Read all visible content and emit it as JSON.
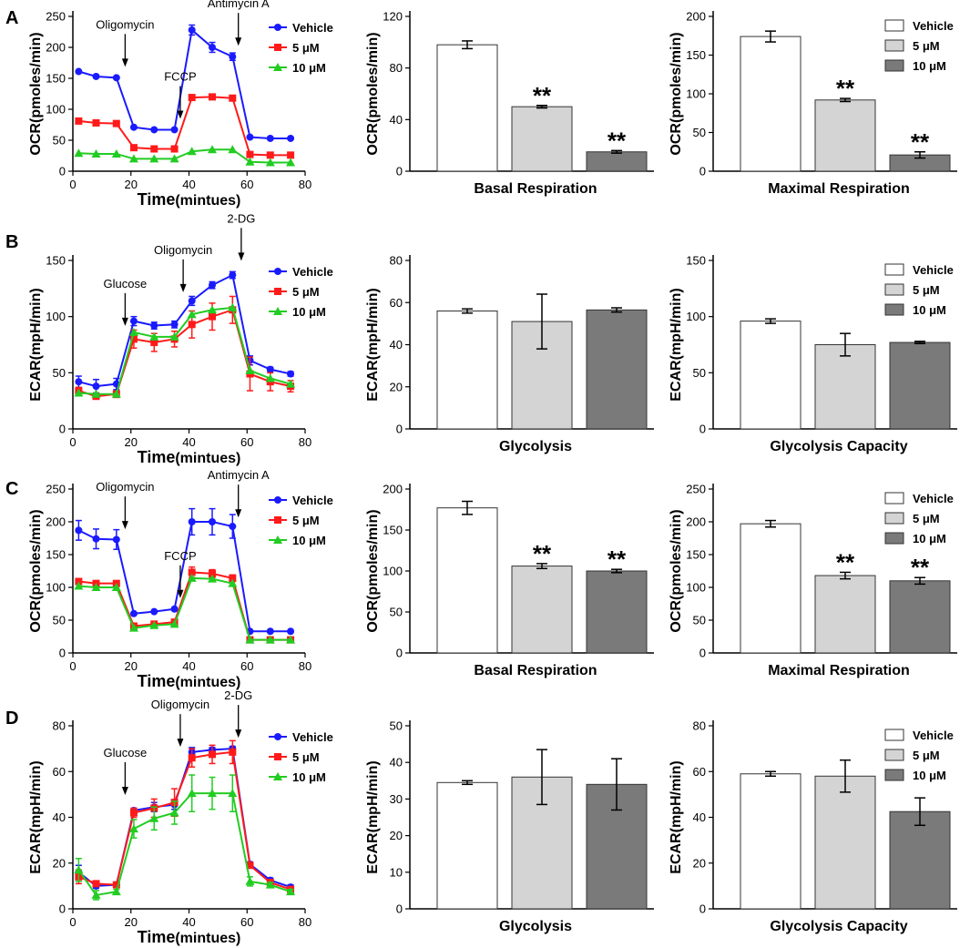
{
  "panel_labels": [
    "A",
    "B",
    "C",
    "D"
  ],
  "chart_data": [
    {
      "id": "A1",
      "type": "line",
      "row": 0,
      "col": 0,
      "title": "",
      "xlabel_bold": "Time",
      "xlabel_rest": "(mintues)",
      "ylabel": "OCR(pmoles/min)",
      "xlim": [
        0,
        80
      ],
      "xticks": [
        0,
        20,
        40,
        60,
        80
      ],
      "ylim": [
        0,
        250
      ],
      "yticks": [
        0,
        50,
        100,
        150,
        200,
        250
      ],
      "x": [
        2,
        8,
        15,
        21,
        28,
        35,
        41,
        48,
        55,
        61,
        68,
        75
      ],
      "series": [
        {
          "name": "Vehicle",
          "color": "#1a1aff",
          "marker": "circle",
          "values": [
            161,
            153,
            151,
            71,
            67,
            67,
            228,
            200,
            185,
            55,
            53,
            53
          ],
          "errors": [
            0,
            0,
            0,
            0,
            0,
            0,
            8,
            8,
            6,
            0,
            0,
            0
          ]
        },
        {
          "name": "5 μM",
          "color": "#ff1a1a",
          "marker": "square",
          "values": [
            81,
            78,
            77,
            38,
            36,
            36,
            119,
            120,
            118,
            27,
            26,
            26
          ],
          "errors": [
            0,
            0,
            0,
            0,
            0,
            0,
            0,
            0,
            0,
            0,
            0,
            0
          ]
        },
        {
          "name": "10 μM",
          "color": "#22cc22",
          "marker": "triangle",
          "values": [
            29,
            28,
            28,
            20,
            20,
            20,
            32,
            35,
            35,
            15,
            14,
            14
          ],
          "errors": [
            0,
            0,
            0,
            0,
            0,
            0,
            0,
            0,
            0,
            0,
            0,
            0
          ]
        }
      ],
      "annotations": [
        {
          "text": "Oligomycin",
          "x": 18,
          "y_value": 151
        },
        {
          "text": "FCCP",
          "x": 37,
          "y_value": 67
        },
        {
          "text": "Antimycin A",
          "x": 57,
          "y_value": 185
        }
      ],
      "legend": "top-right"
    },
    {
      "id": "A2",
      "type": "bar",
      "row": 0,
      "col": 1,
      "xlabel": "Basal Respiration",
      "ylabel": "OCR(pmoles/min)",
      "ylim": [
        0,
        120
      ],
      "yticks": [
        0,
        40,
        80,
        120
      ],
      "categories": [
        "Vehicle",
        "5 μM",
        "10 μM"
      ],
      "values": [
        98,
        50,
        15
      ],
      "errors": [
        3,
        1,
        1
      ],
      "significance": [
        "",
        "**",
        "**"
      ]
    },
    {
      "id": "A3",
      "type": "bar",
      "row": 0,
      "col": 2,
      "xlabel": "Maximal Respiration",
      "ylabel": "OCR(pmoles/min)",
      "ylim": [
        0,
        200
      ],
      "yticks": [
        0,
        50,
        100,
        150,
        200
      ],
      "categories": [
        "Vehicle",
        "5 μM",
        "10 μM"
      ],
      "values": [
        174,
        92,
        21
      ],
      "errors": [
        7,
        2,
        4
      ],
      "significance": [
        "",
        "**",
        "**"
      ],
      "legend": "top-right"
    },
    {
      "id": "B1",
      "type": "line",
      "row": 1,
      "col": 0,
      "xlabel_bold": "Time",
      "xlabel_rest": "(mintues)",
      "ylabel": "ECAR(mpH/min)",
      "xlim": [
        0,
        80
      ],
      "xticks": [
        0,
        20,
        40,
        60,
        80
      ],
      "ylim": [
        0,
        150
      ],
      "yticks": [
        0,
        50,
        100,
        150
      ],
      "x": [
        2,
        8,
        15,
        21,
        28,
        35,
        41,
        48,
        55,
        61,
        68,
        75
      ],
      "series": [
        {
          "name": "Vehicle",
          "color": "#1a1aff",
          "marker": "circle",
          "values": [
            42,
            38,
            40,
            96,
            92,
            93,
            114,
            128,
            137,
            61,
            53,
            49
          ],
          "errors": [
            5,
            6,
            5,
            4,
            3,
            3,
            4,
            3,
            3,
            4,
            2,
            2
          ]
        },
        {
          "name": "5 μM",
          "color": "#ff1a1a",
          "marker": "square",
          "values": [
            34,
            29,
            31,
            80,
            77,
            80,
            93,
            100,
            106,
            49,
            42,
            38
          ],
          "errors": [
            3,
            2,
            3,
            8,
            8,
            7,
            12,
            12,
            12,
            15,
            8,
            5
          ]
        },
        {
          "name": "10 μM",
          "color": "#22cc22",
          "marker": "triangle",
          "values": [
            32,
            31,
            31,
            86,
            82,
            82,
            102,
            106,
            108,
            52,
            45,
            40
          ],
          "errors": [
            0,
            0,
            0,
            0,
            0,
            0,
            0,
            0,
            0,
            0,
            0,
            0
          ]
        }
      ],
      "annotations": [
        {
          "text": "Glucose",
          "x": 18,
          "y_value": 82
        },
        {
          "text": "Oligomycin",
          "x": 38,
          "y_value": 112
        },
        {
          "text": "2-DG",
          "x": 58,
          "y_value": 140
        }
      ],
      "legend": "top-right"
    },
    {
      "id": "B2",
      "type": "bar",
      "row": 1,
      "col": 1,
      "xlabel": "Glycolysis",
      "ylabel": "ECAR(mpH/min)",
      "ylim": [
        0,
        80
      ],
      "yticks": [
        0,
        20,
        40,
        60,
        80
      ],
      "categories": [
        "Vehicle",
        "5 μM",
        "10 μM"
      ],
      "values": [
        56,
        51,
        56.5
      ],
      "errors": [
        1,
        13,
        1
      ],
      "significance": [
        "",
        "",
        ""
      ]
    },
    {
      "id": "B3",
      "type": "bar",
      "row": 1,
      "col": 2,
      "xlabel": "Glycolysis Capacity",
      "ylabel": "ECAR(mpH/min)",
      "ylim": [
        0,
        150
      ],
      "yticks": [
        0,
        50,
        100,
        150
      ],
      "categories": [
        "Vehicle",
        "5 μM",
        "10 μM"
      ],
      "values": [
        96,
        75,
        77
      ],
      "errors": [
        2,
        10,
        1
      ],
      "significance": [
        "",
        "",
        ""
      ],
      "legend": "top-right"
    },
    {
      "id": "C1",
      "type": "line",
      "row": 2,
      "col": 0,
      "xlabel_bold": "Time",
      "xlabel_rest": "(mintues)",
      "ylabel": "OCR(pmoles/min)",
      "xlim": [
        0,
        80
      ],
      "xticks": [
        0,
        20,
        40,
        60,
        80
      ],
      "ylim": [
        0,
        250
      ],
      "yticks": [
        0,
        50,
        100,
        150,
        200,
        250
      ],
      "x": [
        2,
        8,
        15,
        21,
        28,
        35,
        41,
        48,
        55,
        61,
        68,
        75
      ],
      "series": [
        {
          "name": "Vehicle",
          "color": "#1a1aff",
          "marker": "circle",
          "values": [
            187,
            174,
            173,
            60,
            63,
            67,
            200,
            200,
            193,
            33,
            33,
            33
          ],
          "errors": [
            15,
            15,
            15,
            0,
            0,
            0,
            20,
            20,
            18,
            0,
            0,
            0
          ]
        },
        {
          "name": "5 μM",
          "color": "#ff1a1a",
          "marker": "square",
          "values": [
            109,
            106,
            106,
            41,
            44,
            47,
            123,
            121,
            114,
            20,
            20,
            20
          ],
          "errors": [
            3,
            3,
            3,
            3,
            3,
            3,
            8,
            6,
            5,
            0,
            0,
            0
          ]
        },
        {
          "name": "10 μM",
          "color": "#22cc22",
          "marker": "triangle",
          "values": [
            102,
            100,
            100,
            38,
            42,
            44,
            114,
            113,
            106,
            20,
            20,
            20
          ],
          "errors": [
            0,
            0,
            0,
            0,
            0,
            0,
            0,
            0,
            0,
            0,
            0,
            0
          ]
        }
      ],
      "annotations": [
        {
          "text": "Oligomycin",
          "x": 18,
          "y_value": 172
        },
        {
          "text": "FCCP",
          "x": 37,
          "y_value": 67
        },
        {
          "text": "Antimycin A",
          "x": 57,
          "y_value": 190
        }
      ],
      "legend": "top-right"
    },
    {
      "id": "C2",
      "type": "bar",
      "row": 2,
      "col": 1,
      "xlabel": "Basal Respiration",
      "ylabel": "OCR(pmoles/min)",
      "ylim": [
        0,
        200
      ],
      "yticks": [
        0,
        50,
        100,
        150,
        200
      ],
      "categories": [
        "Vehicle",
        "5 μM",
        "10 μM"
      ],
      "values": [
        177,
        106,
        100
      ],
      "errors": [
        8,
        3,
        2
      ],
      "significance": [
        "",
        "**",
        "**"
      ]
    },
    {
      "id": "C3",
      "type": "bar",
      "row": 2,
      "col": 2,
      "xlabel": "Maximal Respiration",
      "ylabel": "OCR(pmoles/min)",
      "ylim": [
        0,
        250
      ],
      "yticks": [
        0,
        50,
        100,
        150,
        200,
        250
      ],
      "categories": [
        "Vehicle",
        "5 μM",
        "10 μM"
      ],
      "values": [
        197,
        118,
        110
      ],
      "errors": [
        5,
        5,
        5
      ],
      "significance": [
        "",
        "**",
        "**"
      ],
      "legend": "top-right"
    },
    {
      "id": "D1",
      "type": "line",
      "row": 3,
      "col": 0,
      "xlabel_bold": "Time",
      "xlabel_rest": "(mintues)",
      "ylabel": "ECAR(mpH/min)",
      "xlim": [
        0,
        80
      ],
      "xticks": [
        0,
        20,
        40,
        60,
        80
      ],
      "ylim": [
        0,
        80
      ],
      "yticks": [
        0,
        20,
        40,
        60,
        80
      ],
      "x": [
        2,
        8,
        15,
        21,
        28,
        35,
        41,
        48,
        55,
        61,
        68,
        75
      ],
      "series": [
        {
          "name": "Vehicle",
          "color": "#1a1aff",
          "marker": "circle",
          "values": [
            16,
            10,
            10.5,
            43,
            44.5,
            45.5,
            68.5,
            69.5,
            70,
            19.5,
            12.5,
            9.5
          ],
          "errors": [
            3,
            1,
            1,
            1,
            2,
            2,
            2,
            1,
            1,
            1,
            1,
            1
          ]
        },
        {
          "name": "5 μM",
          "color": "#ff1a1a",
          "marker": "square",
          "values": [
            14,
            11,
            10.5,
            42,
            44,
            46.5,
            66,
            67.5,
            68.5,
            19,
            11.5,
            8.5
          ],
          "errors": [
            3,
            1,
            1,
            2,
            4,
            6,
            4,
            4,
            5,
            1,
            1,
            1
          ]
        },
        {
          "name": "10 μM",
          "color": "#22cc22",
          "marker": "triangle",
          "values": [
            17,
            6,
            7.5,
            35,
            39.5,
            42,
            50.5,
            50.5,
            50.5,
            12,
            10.5,
            7.5
          ],
          "errors": [
            5,
            2,
            1,
            4,
            5,
            5,
            8,
            7,
            8,
            2,
            1,
            1
          ]
        }
      ],
      "annotations": [
        {
          "text": "Glucose",
          "x": 18,
          "y_value": 45
        },
        {
          "text": "Oligomycin",
          "x": 37,
          "y_value": 66
        },
        {
          "text": "2-DG",
          "x": 57,
          "y_value": 70
        }
      ],
      "legend": "top-right"
    },
    {
      "id": "D2",
      "type": "bar",
      "row": 3,
      "col": 1,
      "xlabel": "Glycolysis",
      "ylabel": "ECAR(mpH/min)",
      "ylim": [
        0,
        50
      ],
      "yticks": [
        0,
        10,
        20,
        30,
        40,
        50
      ],
      "categories": [
        "Vehicle",
        "5 μM",
        "10 μM"
      ],
      "values": [
        34.5,
        36,
        34
      ],
      "errors": [
        0.5,
        7.5,
        7
      ],
      "significance": [
        "",
        "",
        ""
      ]
    },
    {
      "id": "D3",
      "type": "bar",
      "row": 3,
      "col": 2,
      "xlabel": "Glycolysis Capacity",
      "ylabel": "ECAR(mpH/min)",
      "ylim": [
        0,
        80
      ],
      "yticks": [
        0,
        20,
        40,
        60,
        80
      ],
      "categories": [
        "Vehicle",
        "5 μM",
        "10 μM"
      ],
      "values": [
        59,
        58,
        42.5
      ],
      "errors": [
        1,
        7,
        6
      ],
      "significance": [
        "",
        "",
        ""
      ],
      "legend": "top-right"
    }
  ],
  "bar_colors": [
    "#ffffff",
    "#d4d4d4",
    "#7a7a7a"
  ]
}
